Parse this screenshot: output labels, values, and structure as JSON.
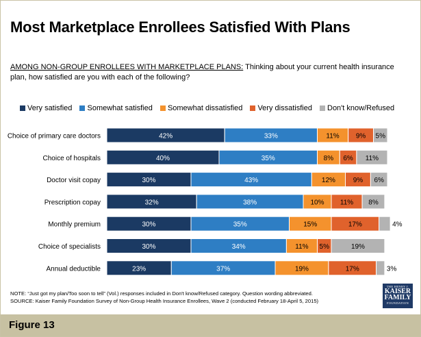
{
  "title": "Most Marketplace Enrollees Satisfied With Plans",
  "question": {
    "lead": "AMONG NON-GROUP ENROLLEES WITH MARKETPLACE PLANS:",
    "text": " Thinking about your current health insurance plan, how satisfied are you with each of the following?"
  },
  "chart_data": {
    "type": "bar",
    "orientation": "horizontal-stacked",
    "value_unit": "%",
    "categories": [
      "Choice of primary care doctors",
      "Choice of hospitals",
      "Doctor visit copay",
      "Prescription copay",
      "Monthly premium",
      "Choice of specialists",
      "Annual deductible"
    ],
    "series": [
      {
        "name": "Very satisfied",
        "color": "#1b3a63",
        "values": [
          42,
          40,
          30,
          32,
          30,
          30,
          23
        ]
      },
      {
        "name": "Somewhat satisfied",
        "color": "#2e7ec4",
        "values": [
          33,
          35,
          43,
          38,
          35,
          34,
          37
        ]
      },
      {
        "name": "Somewhat dissatisfied",
        "color": "#f4922d",
        "values": [
          11,
          8,
          12,
          10,
          15,
          11,
          19
        ]
      },
      {
        "name": "Very dissatisfied",
        "color": "#e0622c",
        "values": [
          9,
          6,
          9,
          11,
          17,
          5,
          17
        ]
      },
      {
        "name": "Don't know/Refused",
        "color": "#b3b3b3",
        "values": [
          5,
          11,
          6,
          8,
          4,
          19,
          3
        ]
      }
    ],
    "legend_position": "top"
  },
  "note": "NOTE: “Just got my plan/Too soon to tell” (Vol.) responses included in Don't know/Refused category. Question wording abbreviated.",
  "source": "SOURCE: Kaiser Family Foundation Survey of Non-Group Health Insurance Enrollees, Wave 2 (conducted February 18-April 5, 2015)",
  "logo": {
    "line1": "THE HENRY J.",
    "line2a": "KAISER",
    "line2b": "FAMILY",
    "line3": "FOUNDATION"
  },
  "footer": {
    "figure_label": "Figure 13"
  }
}
